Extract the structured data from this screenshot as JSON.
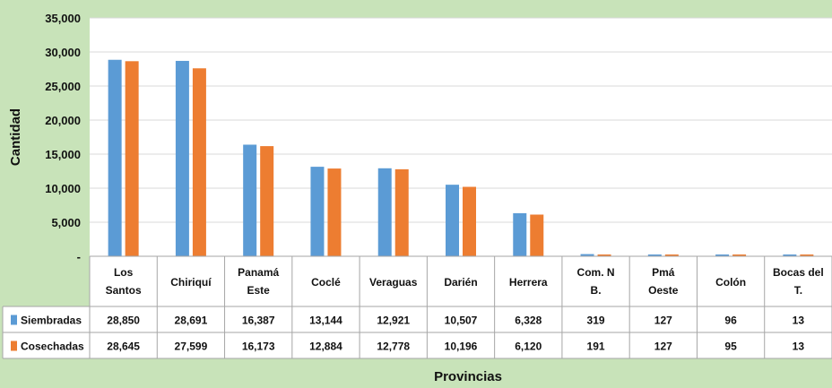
{
  "chart_data": {
    "type": "bar",
    "xlabel": "Provincias",
    "ylabel": "Cantidad",
    "ylim": [
      0,
      35000
    ],
    "yticks": [
      "-",
      "5,000",
      "10,000",
      "15,000",
      "20,000",
      "25,000",
      "30,000",
      "35,000"
    ],
    "categories": [
      [
        "Los",
        "Santos"
      ],
      [
        "Chiriquí"
      ],
      [
        "Panamá",
        "Este"
      ],
      [
        "Coclé"
      ],
      [
        "Veraguas"
      ],
      [
        "Darién"
      ],
      [
        "Herrera"
      ],
      [
        "Com. N",
        "B."
      ],
      [
        "Pmá",
        "Oeste"
      ],
      [
        "Colón"
      ],
      [
        "Bocas del",
        "T."
      ]
    ],
    "series": [
      {
        "name": "Siembradas",
        "color": "#5b9bd5",
        "values": [
          28850,
          28691,
          16387,
          13144,
          12921,
          10507,
          6328,
          319,
          127,
          96,
          13
        ],
        "labels": [
          "28,850",
          "28,691",
          "16,387",
          "13,144",
          "12,921",
          "10,507",
          "6,328",
          "319",
          "127",
          "96",
          "13"
        ]
      },
      {
        "name": "Cosechadas",
        "color": "#ed7d31",
        "values": [
          28645,
          27599,
          16173,
          12884,
          12778,
          10196,
          6120,
          191,
          127,
          95,
          13
        ],
        "labels": [
          "28,645",
          "27,599",
          "16,173",
          "12,884",
          "12,778",
          "10,196",
          "6,120",
          "191",
          "127",
          "95",
          "13"
        ]
      }
    ],
    "grid": true,
    "legend": "table-left"
  }
}
